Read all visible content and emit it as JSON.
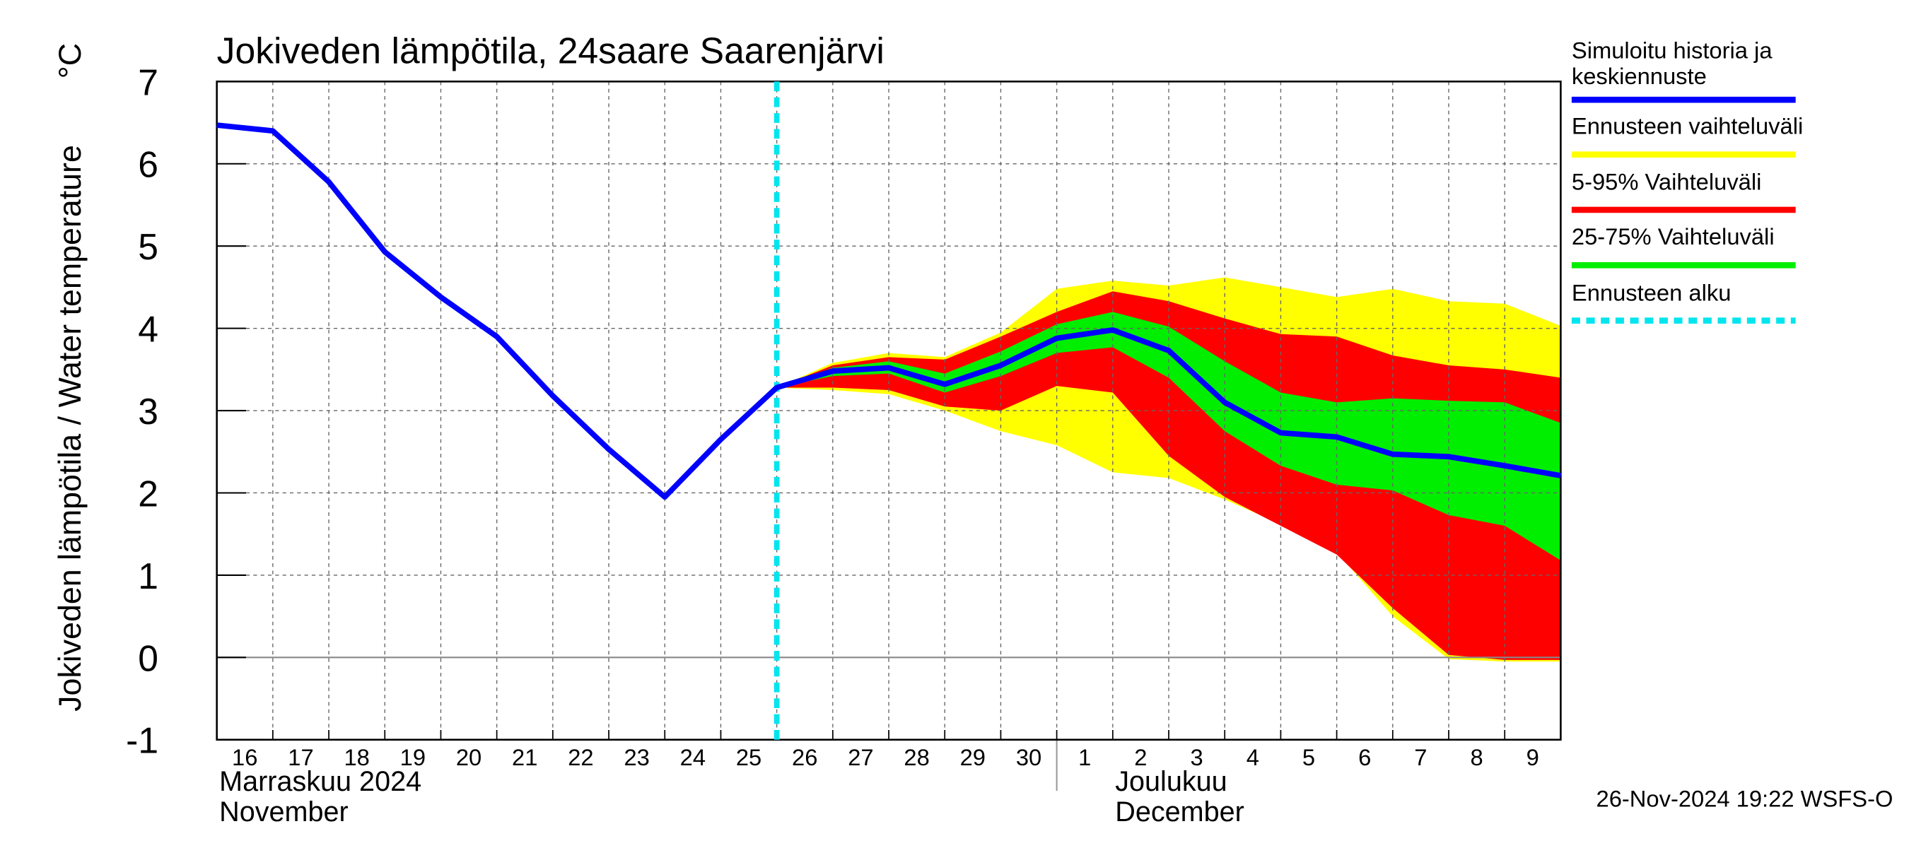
{
  "chart_data": {
    "type": "line",
    "title": "Jokiveden lämpötila, 24saare Saarenjärvi",
    "y_label": "Jokiveden lämpötila / Water temperature",
    "y_unit": "°C",
    "x": [
      "2024-11-16",
      "2024-11-17",
      "2024-11-18",
      "2024-11-19",
      "2024-11-20",
      "2024-11-21",
      "2024-11-22",
      "2024-11-23",
      "2024-11-24",
      "2024-11-25",
      "2024-11-26",
      "2024-11-27",
      "2024-11-28",
      "2024-11-29",
      "2024-11-30",
      "2024-12-01",
      "2024-12-02",
      "2024-12-03",
      "2024-12-04",
      "2024-12-05",
      "2024-12-06",
      "2024-12-07",
      "2024-12-08",
      "2024-12-09",
      "2024-12-10"
    ],
    "xtick_labels": [
      "16",
      "17",
      "18",
      "19",
      "20",
      "21",
      "22",
      "23",
      "24",
      "25",
      "26",
      "27",
      "28",
      "29",
      "30",
      "1",
      "2",
      "3",
      "4",
      "5",
      "6",
      "7",
      "8",
      "9"
    ],
    "months": [
      {
        "index": 0,
        "lines": [
          "Marraskuu 2024",
          "November"
        ]
      },
      {
        "index": 15,
        "lines": [
          "Joulukuu",
          "December"
        ]
      }
    ],
    "ylim": [
      -1,
      7
    ],
    "yticks": [
      -1,
      0,
      1,
      2,
      3,
      4,
      5,
      6,
      7
    ],
    "grid": true,
    "bands": [
      {
        "name": "Ennusteen vaihteluväli",
        "color": "#ffff00",
        "upper": [
          null,
          null,
          null,
          null,
          null,
          null,
          null,
          null,
          null,
          null,
          3.28,
          3.58,
          3.7,
          3.65,
          3.95,
          4.48,
          4.58,
          4.52,
          4.62,
          4.5,
          4.38,
          4.48,
          4.33,
          4.3,
          4.03
        ],
        "lower": [
          null,
          null,
          null,
          null,
          null,
          null,
          null,
          null,
          null,
          null,
          3.28,
          3.25,
          3.2,
          3.0,
          2.75,
          2.58,
          2.25,
          2.18,
          1.92,
          1.62,
          1.28,
          0.5,
          -0.02,
          -0.05,
          -0.05
        ]
      },
      {
        "name": "5-95% Vaihteluväli",
        "color": "#ff0000",
        "upper": [
          null,
          null,
          null,
          null,
          null,
          null,
          null,
          null,
          null,
          null,
          3.28,
          3.55,
          3.65,
          3.62,
          3.9,
          4.2,
          4.45,
          4.33,
          4.12,
          3.93,
          3.9,
          3.67,
          3.55,
          3.5,
          3.4
        ],
        "lower": [
          null,
          null,
          null,
          null,
          null,
          null,
          null,
          null,
          null,
          null,
          3.28,
          3.28,
          3.25,
          3.05,
          3.0,
          3.3,
          3.22,
          2.45,
          1.95,
          1.6,
          1.25,
          0.6,
          0.03,
          -0.03,
          -0.03
        ]
      },
      {
        "name": "25-75% Vaihteluväli",
        "color": "#00ee00",
        "upper": [
          null,
          null,
          null,
          null,
          null,
          null,
          null,
          null,
          null,
          null,
          3.28,
          3.52,
          3.6,
          3.45,
          3.72,
          4.05,
          4.2,
          4.02,
          3.6,
          3.22,
          3.1,
          3.15,
          3.12,
          3.1,
          2.85
        ],
        "lower": [
          null,
          null,
          null,
          null,
          null,
          null,
          null,
          null,
          null,
          null,
          3.28,
          3.42,
          3.45,
          3.22,
          3.42,
          3.7,
          3.77,
          3.4,
          2.75,
          2.33,
          2.1,
          2.03,
          1.73,
          1.6,
          1.18
        ]
      }
    ],
    "series": [
      {
        "name": "Simuloitu historia ja keskiennuste",
        "color": "#0000ff",
        "values": [
          6.47,
          6.4,
          5.78,
          4.93,
          4.38,
          3.9,
          3.18,
          2.53,
          1.95,
          2.65,
          3.28,
          3.48,
          3.52,
          3.32,
          3.55,
          3.88,
          3.98,
          3.73,
          3.1,
          2.73,
          2.68,
          2.47,
          2.44,
          2.33,
          2.21
        ]
      }
    ],
    "forecast_start": {
      "name": "Ennusteen alku",
      "color": "#00e5ee",
      "x": "2024-11-26"
    },
    "timestamp": "26-Nov-2024 19:22 WSFS-O"
  }
}
